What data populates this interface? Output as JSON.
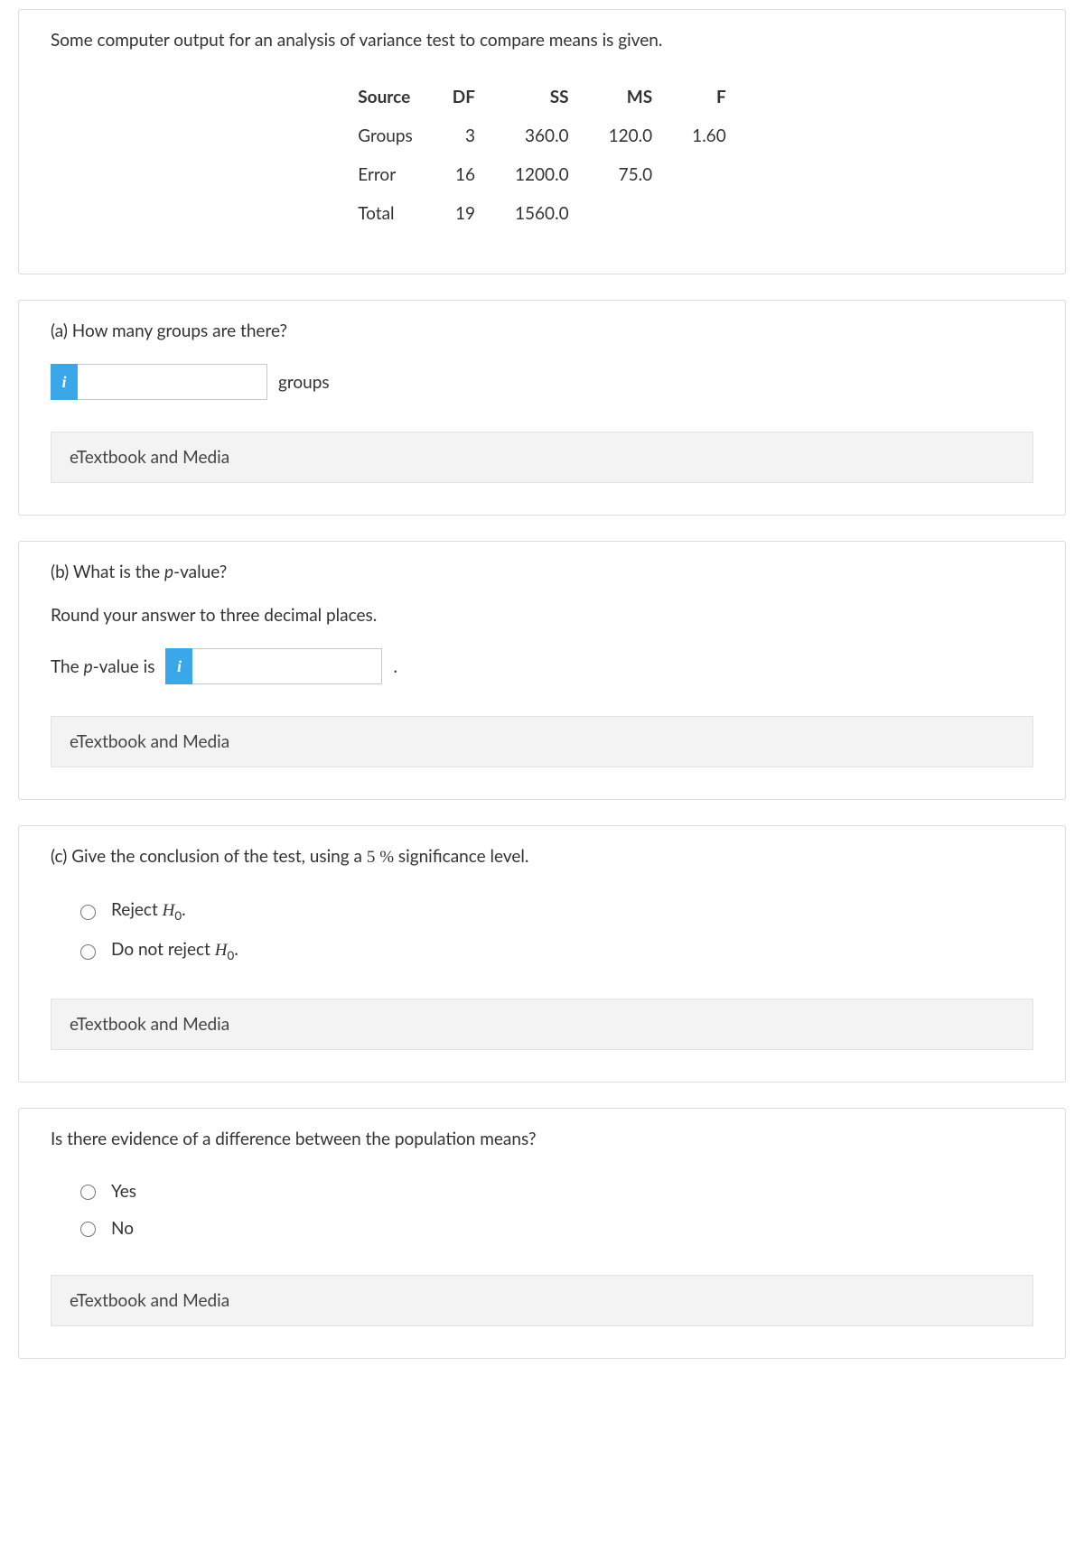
{
  "intro": "Some computer output for an analysis of variance test to compare means is given.",
  "anova": {
    "headers": [
      "Source",
      "DF",
      "SS",
      "MS",
      "F"
    ],
    "rows": [
      [
        "Groups",
        "3",
        "360.0",
        "120.0",
        "1.60"
      ],
      [
        "Error",
        "16",
        "1200.0",
        "75.0",
        ""
      ],
      [
        "Total",
        "19",
        "1560.0",
        "",
        ""
      ]
    ]
  },
  "partA": {
    "question": "(a) How many groups are there?",
    "unit": "groups",
    "info": "i",
    "link": "eTextbook and Media"
  },
  "partB": {
    "question_prefix": "(b) What is the ",
    "question_pword": "p",
    "question_suffix": "-value?",
    "hint": "Round your answer to three decimal places.",
    "label_prefix": "The ",
    "label_pword": "p",
    "label_suffix": "-value is",
    "period": ".",
    "info": "i",
    "link": "eTextbook and Media"
  },
  "partC": {
    "question_prefix": "(c) Give the conclusion of the test, using a ",
    "sig_num": "5",
    "sig_pct": "%",
    "question_suffix": "  significance level.",
    "opt1_pre": "Reject ",
    "opt2_pre": "Do not reject ",
    "H": "H",
    "zero": "0",
    "dot": ".",
    "link": "eTextbook and Media"
  },
  "partD": {
    "question": "Is there evidence of a difference between the population means?",
    "opt1": "Yes",
    "opt2": "No",
    "link": "eTextbook and Media"
  }
}
